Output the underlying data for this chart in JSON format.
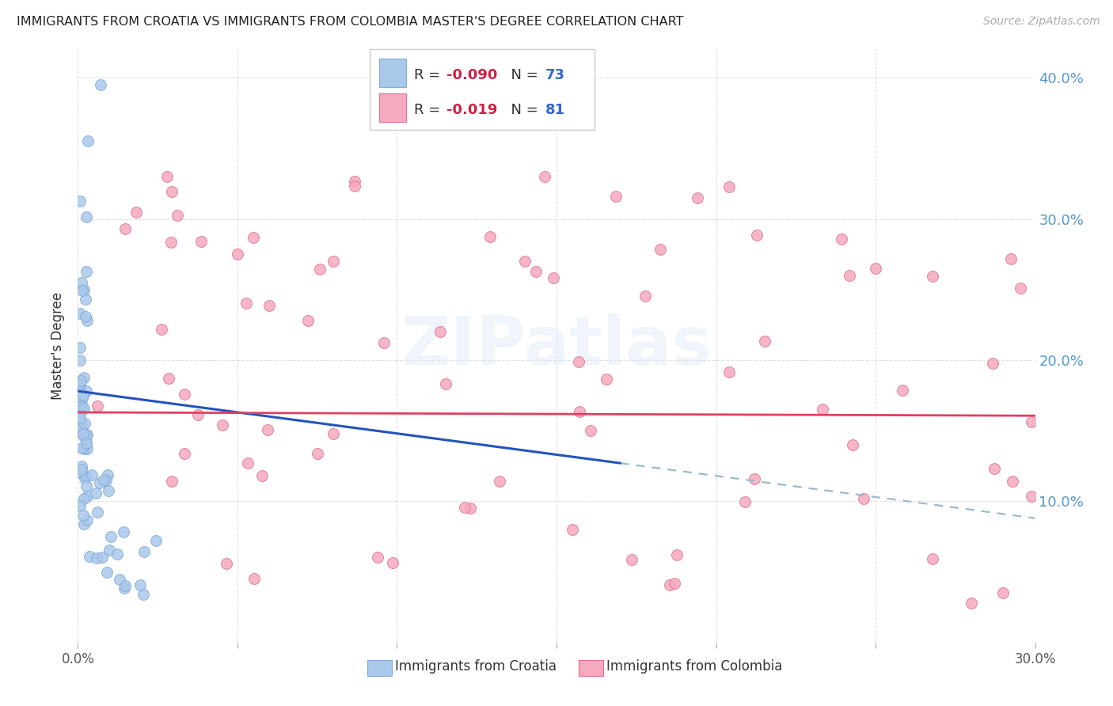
{
  "title": "IMMIGRANTS FROM CROATIA VS IMMIGRANTS FROM COLOMBIA MASTER'S DEGREE CORRELATION CHART",
  "source": "Source: ZipAtlas.com",
  "ylabel": "Master's Degree",
  "xlim": [
    0.0,
    0.3
  ],
  "ylim": [
    0.0,
    0.42
  ],
  "background_color": "#ffffff",
  "grid_color": "#cccccc",
  "croatia_color": "#aac8ea",
  "colombia_color": "#f5aabf",
  "croatia_edge": "#80aad8",
  "colombia_edge": "#e07090",
  "trendline_croatia_color": "#2255bb",
  "trendline_colombia_color": "#e04060",
  "trendline_dash_color": "#99bbcc",
  "legend_label_croatia": "Immigrants from Croatia",
  "legend_label_colombia": "Immigrants from Colombia",
  "watermark": "ZIPatlas",
  "r_color": "#cc2244",
  "n_color": "#3366cc",
  "croatia_R": "-0.090",
  "croatia_N": "73",
  "colombia_R": "-0.019",
  "colombia_N": "81",
  "croatia_x": [
    0.007,
    0.004,
    0.001,
    0.002,
    0.002,
    0.001,
    0.001,
    0.001,
    0.002,
    0.001,
    0.001,
    0.002,
    0.001,
    0.001,
    0.001,
    0.001,
    0.001,
    0.001,
    0.001,
    0.001,
    0.001,
    0.001,
    0.001,
    0.001,
    0.001,
    0.001,
    0.001,
    0.001,
    0.001,
    0.002,
    0.002,
    0.002,
    0.002,
    0.002,
    0.002,
    0.002,
    0.002,
    0.002,
    0.003,
    0.003,
    0.003,
    0.003,
    0.003,
    0.003,
    0.003,
    0.004,
    0.004,
    0.004,
    0.004,
    0.004,
    0.004,
    0.005,
    0.005,
    0.005,
    0.005,
    0.005,
    0.006,
    0.006,
    0.006,
    0.007,
    0.007,
    0.008,
    0.008,
    0.009,
    0.01,
    0.01,
    0.011,
    0.012,
    0.013,
    0.015,
    0.018,
    0.02,
    0.025
  ],
  "croatia_y": [
    0.395,
    0.355,
    0.38,
    0.345,
    0.28,
    0.275,
    0.248,
    0.244,
    0.24,
    0.236,
    0.225,
    0.222,
    0.218,
    0.215,
    0.212,
    0.21,
    0.208,
    0.205,
    0.202,
    0.2,
    0.198,
    0.195,
    0.192,
    0.19,
    0.188,
    0.185,
    0.182,
    0.18,
    0.178,
    0.175,
    0.172,
    0.17,
    0.168,
    0.165,
    0.162,
    0.16,
    0.158,
    0.155,
    0.152,
    0.15,
    0.148,
    0.145,
    0.142,
    0.14,
    0.138,
    0.135,
    0.132,
    0.13,
    0.128,
    0.125,
    0.122,
    0.12,
    0.118,
    0.115,
    0.112,
    0.11,
    0.108,
    0.105,
    0.102,
    0.1,
    0.098,
    0.095,
    0.092,
    0.09,
    0.088,
    0.085,
    0.082,
    0.08,
    0.078,
    0.075,
    0.068,
    0.055,
    0.042
  ],
  "colombia_x": [
    0.005,
    0.01,
    0.015,
    0.02,
    0.025,
    0.03,
    0.035,
    0.04,
    0.045,
    0.05,
    0.055,
    0.06,
    0.065,
    0.07,
    0.075,
    0.08,
    0.085,
    0.09,
    0.095,
    0.1,
    0.105,
    0.11,
    0.115,
    0.12,
    0.125,
    0.13,
    0.135,
    0.14,
    0.145,
    0.15,
    0.155,
    0.16,
    0.165,
    0.17,
    0.175,
    0.18,
    0.185,
    0.19,
    0.195,
    0.2,
    0.205,
    0.21,
    0.215,
    0.22,
    0.225,
    0.23,
    0.235,
    0.24,
    0.245,
    0.25,
    0.255,
    0.26,
    0.265,
    0.27,
    0.275,
    0.28,
    0.285,
    0.29,
    0.295,
    0.3,
    0.008,
    0.012,
    0.018,
    0.022,
    0.028,
    0.032,
    0.038,
    0.042,
    0.048,
    0.052,
    0.058,
    0.062,
    0.068,
    0.072,
    0.14,
    0.25,
    0.28,
    0.295,
    0.3,
    0.16,
    0.13
  ],
  "colombia_y": [
    0.175,
    0.172,
    0.17,
    0.168,
    0.165,
    0.162,
    0.16,
    0.158,
    0.155,
    0.152,
    0.15,
    0.148,
    0.145,
    0.142,
    0.14,
    0.138,
    0.135,
    0.132,
    0.13,
    0.128,
    0.125,
    0.122,
    0.12,
    0.118,
    0.115,
    0.112,
    0.11,
    0.108,
    0.105,
    0.102,
    0.1,
    0.098,
    0.095,
    0.092,
    0.09,
    0.088,
    0.085,
    0.082,
    0.08,
    0.078,
    0.075,
    0.072,
    0.07,
    0.068,
    0.065,
    0.062,
    0.06,
    0.058,
    0.055,
    0.052,
    0.05,
    0.048,
    0.045,
    0.042,
    0.04,
    0.038,
    0.035,
    0.032,
    0.03,
    0.028,
    0.33,
    0.2,
    0.19,
    0.18,
    0.175,
    0.27,
    0.195,
    0.185,
    0.18,
    0.175,
    0.17,
    0.165,
    0.16,
    0.155,
    0.27,
    0.265,
    0.15,
    0.145,
    0.035,
    0.2,
    0.28
  ]
}
